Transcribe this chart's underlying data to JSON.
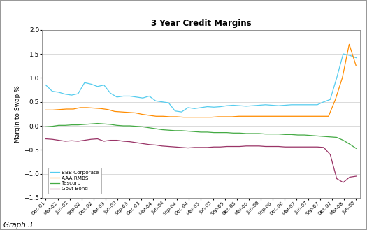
{
  "title": "3 Year Credit Margins",
  "ylabel": "Margin to Swap %",
  "caption": "Graph 3",
  "ylim": [
    -1.5,
    2.0
  ],
  "yticks": [
    -1.5,
    -1.0,
    -0.5,
    0.0,
    0.5,
    1.0,
    1.5,
    2.0
  ],
  "x_labels": [
    "Dec-01",
    "Mar-02",
    "Jun-02",
    "Sep-02",
    "Dec-02",
    "Mar-03",
    "Jun-03",
    "Sep-03",
    "Dec-03",
    "Mar-04",
    "Jun-04",
    "Sep-04",
    "Dec-04",
    "Mar-05",
    "Jun-05",
    "Sep-05",
    "Dec-05",
    "Mar-06",
    "Jun-06",
    "Sep-06",
    "Dec-06",
    "Mar-07",
    "Jun-07",
    "Sep-07",
    "Dec-07",
    "Mar-08",
    "Jun-08"
  ],
  "colors": {
    "BBB Corporate": "#55CCEE",
    "AAA RMBS": "#FF8C00",
    "Tascorp": "#44AA44",
    "Govt Bond": "#993366"
  },
  "series": {
    "BBB Corporate": [
      0.85,
      0.72,
      0.7,
      0.66,
      0.64,
      0.67,
      0.9,
      0.87,
      0.82,
      0.85,
      0.68,
      0.6,
      0.62,
      0.62,
      0.6,
      0.58,
      0.62,
      0.52,
      0.5,
      0.48,
      0.31,
      0.29,
      0.38,
      0.36,
      0.38,
      0.4,
      0.39,
      0.4,
      0.42,
      0.43,
      0.42,
      0.41,
      0.42,
      0.43,
      0.44,
      0.43,
      0.42,
      0.43,
      0.44,
      0.44,
      0.44,
      0.44,
      0.44,
      0.5,
      0.55,
      1.0,
      1.5,
      1.47,
      1.42
    ],
    "AAA RMBS": [
      0.33,
      0.33,
      0.34,
      0.35,
      0.35,
      0.38,
      0.38,
      0.37,
      0.36,
      0.34,
      0.3,
      0.29,
      0.28,
      0.27,
      0.24,
      0.22,
      0.2,
      0.2,
      0.19,
      0.19,
      0.18,
      0.18,
      0.18,
      0.18,
      0.18,
      0.19,
      0.19,
      0.19,
      0.2,
      0.2,
      0.2,
      0.2,
      0.2,
      0.2,
      0.2,
      0.2,
      0.2,
      0.2,
      0.2,
      0.2,
      0.2,
      0.2,
      0.55,
      1.0,
      1.7,
      1.25
    ],
    "Tascorp": [
      -0.02,
      -0.01,
      0.01,
      0.01,
      0.02,
      0.02,
      0.03,
      0.04,
      0.05,
      0.04,
      0.03,
      0.01,
      0.0,
      0.0,
      -0.01,
      -0.02,
      -0.04,
      -0.06,
      -0.08,
      -0.09,
      -0.1,
      -0.1,
      -0.11,
      -0.12,
      -0.13,
      -0.13,
      -0.14,
      -0.14,
      -0.14,
      -0.15,
      -0.15,
      -0.16,
      -0.16,
      -0.16,
      -0.17,
      -0.17,
      -0.17,
      -0.18,
      -0.18,
      -0.19,
      -0.19,
      -0.2,
      -0.21,
      -0.22,
      -0.23,
      -0.24,
      -0.3,
      -0.38,
      -0.47
    ],
    "Govt Bond": [
      -0.27,
      -0.28,
      -0.3,
      -0.32,
      -0.31,
      -0.32,
      -0.3,
      -0.28,
      -0.27,
      -0.32,
      -0.3,
      -0.3,
      -0.32,
      -0.33,
      -0.35,
      -0.37,
      -0.39,
      -0.4,
      -0.42,
      -0.43,
      -0.44,
      -0.45,
      -0.46,
      -0.45,
      -0.45,
      -0.45,
      -0.44,
      -0.44,
      -0.43,
      -0.43,
      -0.43,
      -0.42,
      -0.42,
      -0.42,
      -0.43,
      -0.43,
      -0.43,
      -0.44,
      -0.44,
      -0.44,
      -0.44,
      -0.44,
      -0.44,
      -0.45,
      -0.6,
      -1.1,
      -1.18,
      -1.07,
      -1.05
    ]
  },
  "bg_color": "#FFFFFF",
  "grid_color": "#CCCCCC",
  "border_color": "#999999"
}
